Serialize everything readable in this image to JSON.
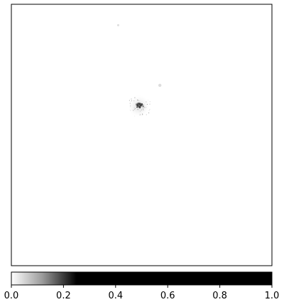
{
  "chart_data": {
    "type": "heatmap",
    "title": "",
    "xlabel": "",
    "ylabel": "",
    "colormap": {
      "name": "gray_r-clipped",
      "low_color": "#ffffff",
      "high_color": "#000000",
      "saturation_value": 0.25
    },
    "heatmap": {
      "x_ticks_shown": false,
      "y_ticks_shown": false,
      "background_value": 0.0,
      "features": [
        {
          "name": "bright-core",
          "x": 0.49,
          "y": 0.385,
          "radius": 0.012,
          "value": 1.0
        },
        {
          "name": "halo-spots",
          "x": 0.49,
          "y": 0.39,
          "radius": 0.05,
          "value": 0.12
        },
        {
          "name": "faint-speck-upper",
          "x": 0.41,
          "y": 0.08,
          "radius": 0.004,
          "value": 0.05
        },
        {
          "name": "faint-speck-right",
          "x": 0.57,
          "y": 0.31,
          "radius": 0.006,
          "value": 0.08
        }
      ]
    },
    "colorbar": {
      "orientation": "horizontal",
      "vmin": 0.0,
      "vmax": 1.0,
      "ticks": [
        0.0,
        0.2,
        0.4,
        0.6,
        0.8,
        1.0
      ],
      "tick_labels": [
        "0.0",
        "0.2",
        "0.4",
        "0.6",
        "0.8",
        "1.0"
      ]
    }
  }
}
